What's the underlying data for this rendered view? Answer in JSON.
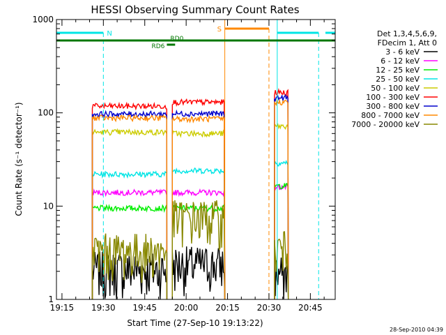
{
  "chart_data": {
    "type": "line",
    "title": "HESSI Observing Summary Count Rates",
    "xlabel": "Start Time (27-Sep-10 19:13:22)",
    "ylabel": "Count Rate (s⁻¹ detector⁻¹)",
    "timestamp": "28-Sep-2010 04:39",
    "y_scale": "log",
    "ylim": [
      1,
      1000
    ],
    "y_tick_labels": [
      "1",
      "10",
      "100",
      "1000"
    ],
    "x_range_minutes": [
      "19:13",
      "20:54"
    ],
    "x_tick_labels": [
      "19:15",
      "19:30",
      "19:45",
      "20:00",
      "20:15",
      "20:30",
      "20:45"
    ],
    "legend_header": [
      "Det 1,3,4,5,6,9,",
      "FDecim 1, Att 0"
    ],
    "legend_placement": "right",
    "grid": false,
    "annotations": {
      "night_start_color": "#00e5e5",
      "night_end_color": "#00e5e5",
      "saa_color": "#ff8800",
      "decimation_color": "#007700",
      "night_label": "N",
      "saa_label": "S",
      "rd6_label": "RD6",
      "rd0_label": "RD0",
      "night_intervals": [
        [
          "19:13",
          "19:30"
        ],
        [
          "20:33",
          "20:48"
        ]
      ],
      "saa_interval": [
        "20:14",
        "20:30"
      ],
      "rd6_bar": [
        "19:13",
        "20:54"
      ],
      "rd6_short_bar": [
        "19:53",
        "19:56"
      ]
    },
    "data_segments": [
      [
        "19:26",
        "19:53"
      ],
      [
        "19:55",
        "20:14"
      ],
      [
        "20:32",
        "20:37"
      ]
    ],
    "series": [
      {
        "name": "3 - 6 keV",
        "color": "#000000",
        "levels": [
          2.1,
          2.4,
          1.9
        ]
      },
      {
        "name": "6 - 12 keV",
        "color": "#ff00ff",
        "levels": [
          14,
          14,
          16
        ]
      },
      {
        "name": "12 - 25 keV",
        "color": "#00ee00",
        "levels": [
          9.5,
          9.5,
          16.5
        ]
      },
      {
        "name": "25 - 50 keV",
        "color": "#00e5e5",
        "levels": [
          22,
          24,
          29
        ]
      },
      {
        "name": "50 - 100 keV",
        "color": "#cccc00",
        "levels": [
          62,
          60,
          72
        ]
      },
      {
        "name": "100 - 300 keV",
        "color": "#ff0000",
        "levels": [
          118,
          130,
          165
        ]
      },
      {
        "name": "300 - 800 keV",
        "color": "#0000cc",
        "levels": [
          97,
          98,
          145
        ]
      },
      {
        "name": "800 - 7000 keV",
        "color": "#ff8800",
        "levels": [
          88,
          86,
          130
        ]
      },
      {
        "name": "7000 - 20000 keV",
        "color": "#888800",
        "levels": [
          3.3,
          7.5,
          3.5
        ]
      }
    ]
  }
}
